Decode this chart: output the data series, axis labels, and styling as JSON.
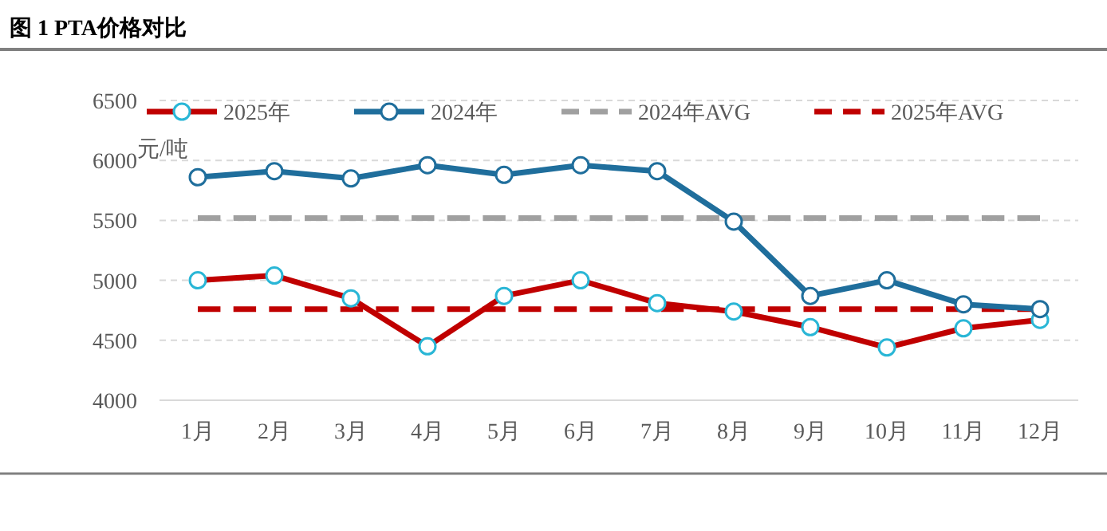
{
  "chart_data": {
    "type": "line",
    "title": "图 1 PTA价格对比",
    "ylabel": "元/吨",
    "categories": [
      "1月",
      "2月",
      "3月",
      "4月",
      "5月",
      "6月",
      "7月",
      "8月",
      "9月",
      "10月",
      "11月",
      "12月"
    ],
    "series": [
      {
        "name": "2025年",
        "color": "#c00000",
        "marker": "circle",
        "line_style": "solid",
        "values": [
          5000,
          5040,
          4850,
          4450,
          4870,
          5000,
          4810,
          4740,
          4610,
          4440,
          4600,
          4670
        ]
      },
      {
        "name": "2024年",
        "color": "#1f6e9c",
        "marker": "circle",
        "line_style": "solid",
        "values": [
          5860,
          5910,
          5850,
          5960,
          5880,
          5960,
          5910,
          5490,
          4870,
          5000,
          4800,
          4760
        ]
      },
      {
        "name": "2024年AVG",
        "color": "#a0a0a0",
        "marker": "none",
        "line_style": "dashed",
        "values": [
          5520,
          5520,
          5520,
          5520,
          5520,
          5520,
          5520,
          5520,
          5520,
          5520,
          5520,
          5520
        ]
      },
      {
        "name": "2025年AVG",
        "color": "#c00000",
        "marker": "none",
        "line_style": "dashed",
        "values": [
          4760,
          4760,
          4760,
          4760,
          4760,
          4760,
          4760,
          4760,
          4760,
          4760,
          4760,
          4760
        ]
      }
    ],
    "ylim": [
      4000,
      6500
    ],
    "yticks": [
      4000,
      4500,
      5000,
      5500,
      6000,
      6500
    ],
    "grid": "y",
    "legend": "top"
  }
}
